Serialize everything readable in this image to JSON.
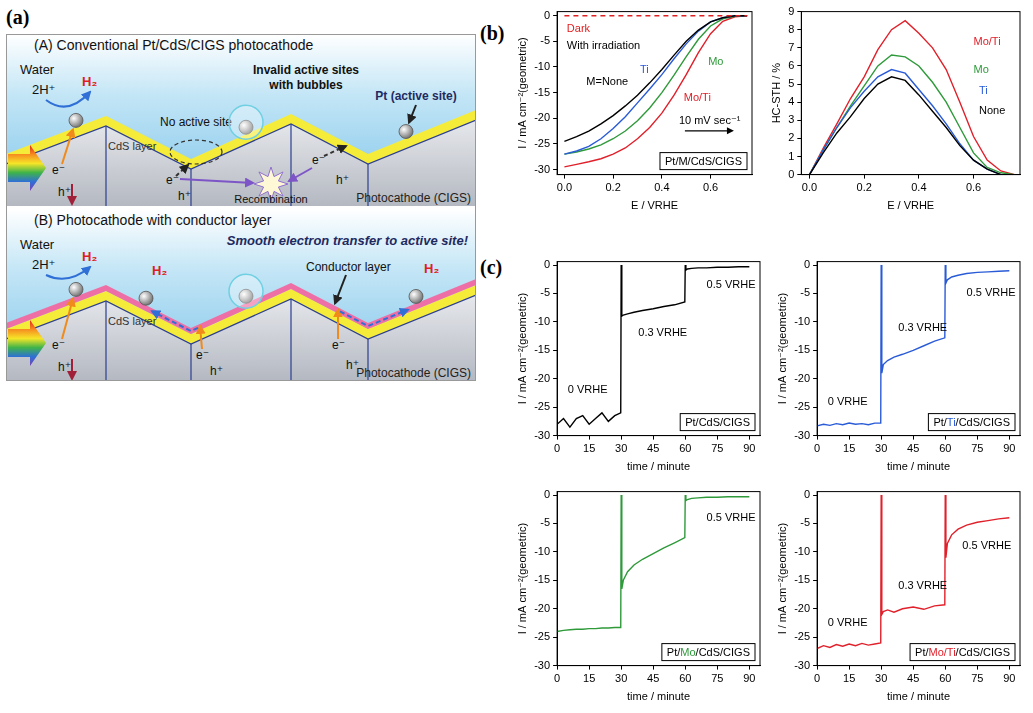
{
  "figure_labels": [
    "(a)",
    "(b)",
    "(c)"
  ],
  "diagram": {
    "panel_A": {
      "title": "(A) Conventional Pt/CdS/CIGS photocathode",
      "water": "Water",
      "reaction": [
        "2H⁺",
        "H₂"
      ],
      "no_active_site": "No active site",
      "invalid_sites": [
        "Invalid active sites",
        "with bubbles"
      ],
      "pt": "Pt (active site)",
      "cds": "CdS layer",
      "absorber": "Photocathode (CIGS)",
      "carriers": [
        [
          "e⁻",
          "h⁺"
        ],
        [
          "e⁻",
          "h⁺"
        ],
        [
          "e⁻",
          "h⁺"
        ]
      ],
      "recombination": "Recombination"
    },
    "panel_B": {
      "title": "(B) Photocathode with conductor layer",
      "water": "Water",
      "slogan": "Smooth electron transfer to active site!",
      "reaction": [
        "2H⁺",
        "H₂"
      ],
      "extra_products": [
        "H₂",
        "H₂"
      ],
      "conductor": "Conductor layer",
      "cds": "CdS layer",
      "absorber": "Photocathode (CIGS)",
      "carriers": [
        [
          "e⁻",
          "h⁺"
        ],
        [
          "e⁻",
          "h⁺"
        ],
        [
          "e⁻",
          "h⁺"
        ]
      ]
    }
  },
  "chart_data": [
    {
      "type": "line",
      "x_label": "E / VRHE",
      "y_label": "I / mA cm⁻²(geometric)",
      "xlim": [
        -0.03,
        0.77
      ],
      "xticks": [
        {
          "value": 0,
          "label": "0.0"
        },
        {
          "value": 0.2,
          "label": "0.2"
        },
        {
          "value": 0.4,
          "label": "0.4"
        },
        {
          "value": 0.6,
          "label": "0.6"
        }
      ],
      "ylim": [
        -31,
        0.8
      ],
      "yticks": [
        -30,
        -25,
        -20,
        -15,
        -10,
        -5,
        0
      ],
      "box_label": "Pt/M/CdS/CIGS",
      "annotations": [
        {
          "text": "With irradiation",
          "x": 0.01,
          "y": -6
        },
        {
          "text": "10 mV sec⁻¹",
          "x": 0.47,
          "y": -20.5
        }
      ],
      "series": [
        {
          "name": "Dark",
          "color": "#e02020",
          "line_style": "dashed",
          "label_at": [
            0.01,
            -2.5
          ],
          "x": [
            0,
            0.75
          ],
          "values": [
            0,
            0
          ]
        },
        {
          "name": "M=None",
          "color": "#000000",
          "line_style": "solid",
          "label_at": [
            0.09,
            -13
          ],
          "x": [
            0,
            0.05,
            0.1,
            0.15,
            0.2,
            0.25,
            0.3,
            0.35,
            0.4,
            0.45,
            0.5,
            0.55,
            0.6,
            0.65,
            0.7,
            0.75
          ],
          "values": [
            -24.5,
            -23.6,
            -22.5,
            -21.1,
            -19.5,
            -17.6,
            -15.5,
            -13.1,
            -10.5,
            -7.7,
            -5,
            -2.8,
            -1.2,
            -0.4,
            0,
            0
          ]
        },
        {
          "name": "Ti",
          "color": "#2a5bd7",
          "line_style": "solid",
          "label_at": [
            0.31,
            -10.5
          ],
          "x": [
            0,
            0.05,
            0.1,
            0.15,
            0.2,
            0.25,
            0.3,
            0.35,
            0.4,
            0.45,
            0.5,
            0.55,
            0.6,
            0.65,
            0.7,
            0.75
          ],
          "values": [
            -27,
            -26.4,
            -25.5,
            -24,
            -22,
            -19.7,
            -17,
            -14.3,
            -11.5,
            -8.4,
            -5.5,
            -3,
            -1.2,
            -0.4,
            0,
            0
          ]
        },
        {
          "name": "Mo",
          "color": "#2e9a3a",
          "line_style": "solid",
          "label_at": [
            0.59,
            -9
          ],
          "x": [
            0,
            0.05,
            0.1,
            0.15,
            0.2,
            0.25,
            0.3,
            0.35,
            0.4,
            0.45,
            0.5,
            0.55,
            0.6,
            0.65,
            0.7,
            0.75
          ],
          "values": [
            -27,
            -26.6,
            -26,
            -25.2,
            -24,
            -22.5,
            -20.5,
            -18,
            -15,
            -11.6,
            -8,
            -4.6,
            -2,
            -0.6,
            -0.1,
            0
          ]
        },
        {
          "name": "Mo/Ti",
          "color": "#e0202a",
          "line_style": "solid",
          "label_at": [
            0.49,
            -16
          ],
          "x": [
            0,
            0.05,
            0.1,
            0.15,
            0.2,
            0.25,
            0.3,
            0.35,
            0.4,
            0.45,
            0.5,
            0.55,
            0.6,
            0.65,
            0.7,
            0.75
          ],
          "values": [
            -29.5,
            -29,
            -28.5,
            -27.9,
            -27,
            -25.8,
            -24,
            -21.8,
            -19,
            -15.5,
            -11.5,
            -7.2,
            -3.5,
            -1.1,
            -0.2,
            0
          ]
        }
      ]
    },
    {
      "type": "line",
      "x_label": "E / VRHE",
      "y_label": "HC-STH / %",
      "xlim": [
        -0.03,
        0.77
      ],
      "xticks": [
        {
          "value": 0,
          "label": "0.0"
        },
        {
          "value": 0.2,
          "label": "0.2"
        },
        {
          "value": 0.4,
          "label": "0.4"
        },
        {
          "value": 0.6,
          "label": "0.6"
        }
      ],
      "ylim": [
        0,
        9
      ],
      "yticks": [
        0,
        1,
        2,
        3,
        4,
        5,
        6,
        7,
        8,
        9
      ],
      "series": [
        {
          "name": "None",
          "color": "#000000",
          "line_style": "solid",
          "label_at": [
            0.62,
            3.5
          ],
          "x": [
            0,
            0.05,
            0.1,
            0.15,
            0.2,
            0.25,
            0.3,
            0.35,
            0.4,
            0.45,
            0.5,
            0.55,
            0.6,
            0.65,
            0.7,
            0.75
          ],
          "values": [
            0,
            1.2,
            2.3,
            3.2,
            4.2,
            5.0,
            5.4,
            5.2,
            4.4,
            3.5,
            2.6,
            1.6,
            0.8,
            0.3,
            0,
            0
          ]
        },
        {
          "name": "Ti",
          "color": "#2a5bd7",
          "line_style": "solid",
          "label_at": [
            0.62,
            4.6
          ],
          "x": [
            0,
            0.05,
            0.1,
            0.15,
            0.2,
            0.25,
            0.3,
            0.35,
            0.4,
            0.45,
            0.5,
            0.55,
            0.6,
            0.65,
            0.7,
            0.75
          ],
          "values": [
            0,
            1.35,
            2.6,
            3.7,
            4.6,
            5.4,
            5.8,
            5.6,
            4.7,
            3.8,
            2.8,
            1.7,
            0.8,
            0.3,
            0,
            0
          ]
        },
        {
          "name": "Mo",
          "color": "#2e9a3a",
          "line_style": "solid",
          "label_at": [
            0.6,
            5.8
          ],
          "x": [
            0,
            0.05,
            0.1,
            0.15,
            0.2,
            0.25,
            0.3,
            0.35,
            0.4,
            0.45,
            0.5,
            0.55,
            0.6,
            0.65,
            0.7,
            0.75
          ],
          "values": [
            0,
            1.35,
            2.6,
            3.8,
            4.9,
            6.0,
            6.6,
            6.5,
            6.0,
            5.1,
            4.0,
            2.6,
            1.2,
            0.4,
            0.1,
            0
          ]
        },
        {
          "name": "Mo/Ti",
          "color": "#e0202a",
          "line_style": "solid",
          "label_at": [
            0.6,
            7.3
          ],
          "x": [
            0,
            0.05,
            0.1,
            0.15,
            0.2,
            0.25,
            0.3,
            0.35,
            0.4,
            0.45,
            0.5,
            0.55,
            0.6,
            0.65,
            0.7,
            0.75
          ],
          "values": [
            0,
            1.45,
            2.8,
            4.2,
            5.4,
            6.9,
            8.0,
            8.5,
            7.8,
            7.0,
            5.8,
            4.0,
            2.1,
            0.8,
            0.2,
            0
          ]
        }
      ]
    },
    {
      "type": "line",
      "x_label": "time / minute",
      "y_label": "I / mA cm⁻²(geometric)",
      "xlim": [
        0,
        95
      ],
      "xticks": [
        0,
        15,
        30,
        45,
        60,
        75,
        90
      ],
      "ylim": [
        -30,
        0.6
      ],
      "yticks": [
        -30,
        -25,
        -20,
        -15,
        -10,
        -5,
        0
      ],
      "annotations": [
        {
          "text": "0 VRHE",
          "x": 5,
          "y": -22
        },
        {
          "text": "0.3 VRHE",
          "x": 38,
          "y": -12
        },
        {
          "text": "0.5 VRHE",
          "x": 70,
          "y": -3.5
        }
      ],
      "series": [
        {
          "name": "Pt/CdS/CIGS",
          "color": "#000000",
          "line_style": "solid",
          "x": [
            0,
            3,
            6,
            9,
            12,
            15,
            18,
            21,
            24,
            27,
            29.8,
            30,
            30.3,
            31,
            33,
            36,
            40,
            45,
            50,
            55,
            59.8,
            60,
            60.3,
            61,
            63,
            66,
            70,
            75,
            80,
            85,
            90
          ],
          "values": [
            -28,
            -27,
            -28.5,
            -27,
            -26.5,
            -28,
            -27,
            -26,
            -27.5,
            -26.5,
            -26,
            0,
            -9,
            -8.8,
            -8.6,
            -8.3,
            -8,
            -7.7,
            -7.3,
            -7,
            -6.5,
            0,
            -0.9,
            -0.7,
            -0.6,
            -0.5,
            -0.5,
            -0.4,
            -0.4,
            -0.3,
            -0.3
          ]
        }
      ]
    },
    {
      "type": "line",
      "x_label": "time / minute",
      "y_label": "I / mA cm⁻²(geometric)",
      "xlim": [
        0,
        95
      ],
      "xticks": [
        0,
        15,
        30,
        45,
        60,
        75,
        90
      ],
      "ylim": [
        -30,
        0.6
      ],
      "yticks": [
        -30,
        -25,
        -20,
        -15,
        -10,
        -5,
        0
      ],
      "annotations": [
        {
          "text": "0 VRHE",
          "x": 5,
          "y": -24
        },
        {
          "text": "0.3 VRHE",
          "x": 38,
          "y": -11
        },
        {
          "text": "0.5 VRHE",
          "x": 70,
          "y": -5
        }
      ],
      "series": [
        {
          "name": "Pt/Ti/CdS/CIGS",
          "highlight": "Ti",
          "color": "#2a5bd7",
          "line_style": "solid",
          "x": [
            0,
            3,
            6,
            9,
            12,
            15,
            18,
            21,
            24,
            27,
            29.8,
            30,
            30.3,
            31,
            33,
            36,
            40,
            45,
            50,
            55,
            59.8,
            60,
            60.3,
            61,
            63,
            66,
            70,
            75,
            80,
            85,
            90
          ],
          "values": [
            -28.3,
            -28,
            -28.2,
            -27.9,
            -28.1,
            -27.8,
            -28,
            -27.9,
            -28.1,
            -27.8,
            -27.8,
            0,
            -19,
            -17.5,
            -16.8,
            -16.2,
            -15.7,
            -15,
            -14.2,
            -13.4,
            -12.8,
            0,
            -3.2,
            -2.6,
            -2.1,
            -1.8,
            -1.5,
            -1.3,
            -1.2,
            -1.1,
            -1.0
          ]
        }
      ]
    },
    {
      "type": "line",
      "x_label": "time / minute",
      "y_label": "I / mA cm⁻²(geometric)",
      "xlim": [
        0,
        95
      ],
      "xticks": [
        0,
        15,
        30,
        45,
        60,
        75,
        90
      ],
      "ylim": [
        -30,
        0.6
      ],
      "yticks": [
        -30,
        -25,
        -20,
        -15,
        -10,
        -5,
        0
      ],
      "annotations": [
        {
          "text": "0.5 VRHE",
          "x": 70,
          "y": -4
        }
      ],
      "series": [
        {
          "name": "Pt/Mo/CdS/CIGS",
          "highlight": "Mo",
          "color": "#2e9a3a",
          "line_style": "solid",
          "x": [
            0,
            3,
            6,
            9,
            12,
            15,
            18,
            21,
            24,
            27,
            29.8,
            30,
            30.3,
            31,
            33,
            36,
            40,
            45,
            50,
            55,
            59.8,
            60,
            60.3,
            61,
            63,
            66,
            70,
            75,
            80,
            85,
            90
          ],
          "values": [
            -24,
            -23.8,
            -23.7,
            -23.6,
            -23.6,
            -23.5,
            -23.5,
            -23.4,
            -23.4,
            -23.3,
            -23.3,
            0,
            -16.5,
            -15,
            -13.5,
            -12.3,
            -11.3,
            -10.3,
            -9.3,
            -8.4,
            -7.5,
            0,
            -1,
            -0.8,
            -0.6,
            -0.5,
            -0.4,
            -0.4,
            -0.3,
            -0.3,
            -0.3
          ]
        }
      ]
    },
    {
      "type": "line",
      "x_label": "time / minute",
      "y_label": "I / mA cm⁻²(geometric)",
      "xlim": [
        0,
        95
      ],
      "xticks": [
        0,
        15,
        30,
        45,
        60,
        75,
        90
      ],
      "ylim": [
        -30,
        0.6
      ],
      "yticks": [
        -30,
        -25,
        -20,
        -15,
        -10,
        -5,
        0
      ],
      "annotations": [
        {
          "text": "0 VRHE",
          "x": 5,
          "y": -22.5
        },
        {
          "text": "0.3 VRHE",
          "x": 38,
          "y": -16
        },
        {
          "text": "0.5 VRHE",
          "x": 68,
          "y": -9
        }
      ],
      "series": [
        {
          "name": "Pt/Mo/Ti/CdS/CIGS",
          "highlight": "Mo/Ti",
          "color": "#e0202a",
          "line_style": "solid",
          "x": [
            0,
            3,
            6,
            9,
            12,
            15,
            18,
            21,
            24,
            27,
            29.8,
            30,
            30.3,
            31,
            33,
            36,
            40,
            45,
            50,
            55,
            59.8,
            60,
            60.3,
            61,
            63,
            66,
            70,
            75,
            80,
            85,
            90
          ],
          "values": [
            -27,
            -26.5,
            -26.8,
            -26.3,
            -26.6,
            -26.2,
            -26.5,
            -26.1,
            -26.4,
            -26.2,
            -26,
            0,
            -21,
            -20.5,
            -20.2,
            -20.6,
            -20,
            -19.7,
            -20.1,
            -19.5,
            -19.3,
            0,
            -11,
            -8.5,
            -7,
            -6,
            -5.3,
            -4.8,
            -4.5,
            -4.2,
            -4.0
          ]
        }
      ]
    }
  ]
}
